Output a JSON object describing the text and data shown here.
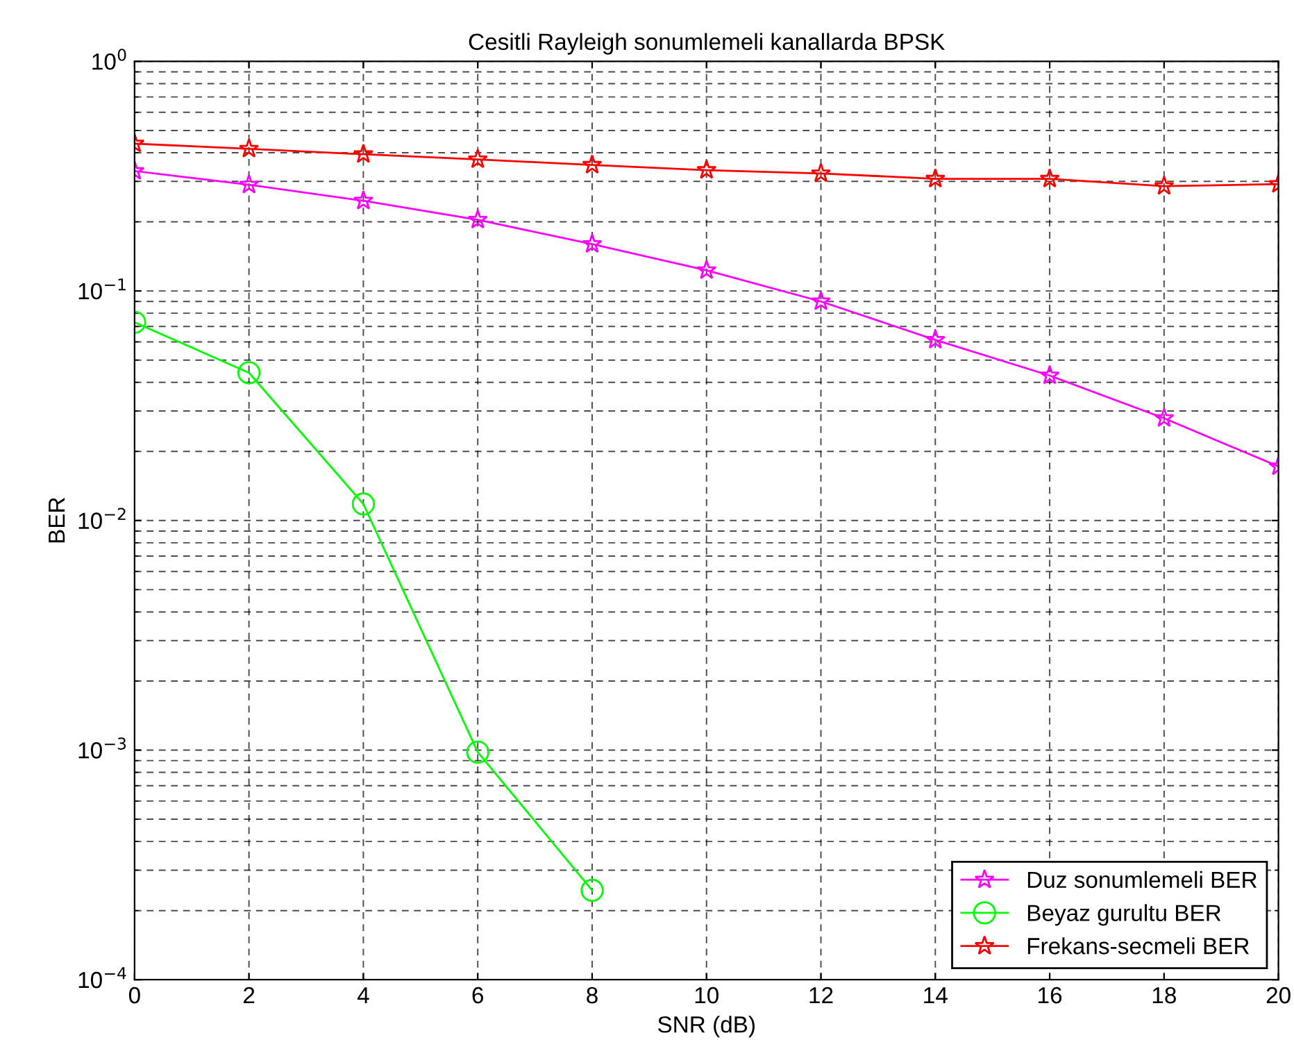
{
  "chart_data": {
    "type": "line",
    "title": "Cesitli Rayleigh sonumlemeli kanallarda BPSK",
    "xlabel": "SNR (dB)",
    "ylabel": "BER",
    "x": [
      0,
      2,
      4,
      6,
      8,
      10,
      12,
      14,
      16,
      18,
      20
    ],
    "series": [
      {
        "name": "Duz sonumlemeli BER",
        "color": "#ff00ff",
        "marker": "star",
        "values": [
          0.333,
          0.29,
          0.247,
          0.204,
          0.16,
          0.123,
          0.09,
          0.0612,
          0.0428,
          0.0279,
          0.0172
        ]
      },
      {
        "name": "Beyaz gurultu BER",
        "color": "#00ff00",
        "marker": "circle",
        "x": [
          0,
          2,
          4,
          6,
          8
        ],
        "values": [
          0.073,
          0.044,
          0.0118,
          0.00098,
          0.000245
        ]
      },
      {
        "name": "Frekans-secmeli BER",
        "color": "#ff0000",
        "marker": "star",
        "values": [
          0.438,
          0.416,
          0.394,
          0.374,
          0.354,
          0.336,
          0.325,
          0.308,
          0.308,
          0.286,
          0.292
        ]
      }
    ],
    "log": "y",
    "xlim": [
      0,
      20
    ],
    "xticks": [
      0,
      2,
      4,
      6,
      8,
      10,
      12,
      14,
      16,
      18,
      20
    ],
    "ylim": [
      0.0001,
      1
    ],
    "yticks": [
      {
        "value": 0.0001,
        "label": "10$^{−4}$"
      },
      {
        "value": 0.001,
        "label": "10$^{−3}$"
      },
      {
        "value": 0.01,
        "label": "10$^{−2}$"
      },
      {
        "value": 0.1,
        "label": "10$^{−1}$"
      },
      {
        "value": 1,
        "label": "10$^{0}$"
      }
    ],
    "grid": true,
    "legend": "bottom right",
    "line_style": "solid"
  }
}
